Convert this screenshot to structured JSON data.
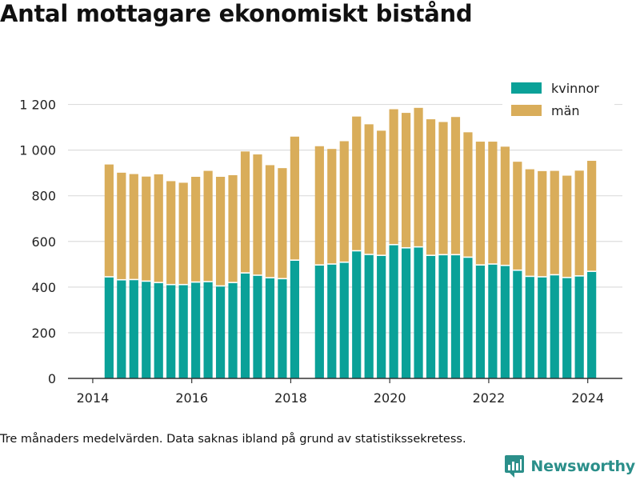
{
  "page": {
    "title": "Antal mottagare ekonomiskt bistånd",
    "note": "Tre månaders medelvärden. Data saknas ibland på grund av statistikssekretess.",
    "brand": "Newsworthy"
  },
  "colors": {
    "kvinnor": "#0aa198",
    "man": "#d9ad5a",
    "grid": "#dddddd",
    "axis": "#333333",
    "brand": "#2b8f8a"
  },
  "chart_data": {
    "type": "bar",
    "stacked": true,
    "title": "Antal mottagare ekonomiskt bistånd",
    "xlabel": "",
    "ylabel": "",
    "xlim": [
      2013.5,
      2024.7
    ],
    "ylim": [
      0,
      1300
    ],
    "y_ticks": [
      0,
      200,
      400,
      600,
      800,
      1000,
      1200
    ],
    "y_tick_labels": [
      "0",
      "200",
      "400",
      "600",
      "800",
      "1 000",
      "1 200"
    ],
    "x_ticks": [
      2014,
      2016,
      2018,
      2020,
      2022,
      2024
    ],
    "x_tick_labels": [
      "2014",
      "2016",
      "2018",
      "2020",
      "2022",
      "2024"
    ],
    "grid": true,
    "legend_position": "top-right",
    "x": [
      2014.33,
      2014.58,
      2014.83,
      2015.08,
      2015.33,
      2015.58,
      2015.83,
      2016.08,
      2016.33,
      2016.58,
      2016.83,
      2017.08,
      2017.33,
      2017.58,
      2017.83,
      2018.08,
      2018.58,
      2018.83,
      2019.08,
      2019.33,
      2019.58,
      2019.83,
      2020.08,
      2020.33,
      2020.58,
      2020.83,
      2021.08,
      2021.33,
      2021.58,
      2021.83,
      2022.08,
      2022.33,
      2022.58,
      2022.83,
      2023.08,
      2023.33,
      2023.58,
      2023.83,
      2024.08
    ],
    "series": [
      {
        "name": "kvinnor",
        "values": [
          445,
          432,
          433,
          426,
          420,
          411,
          411,
          422,
          424,
          405,
          420,
          462,
          452,
          441,
          437,
          518,
          497,
          501,
          509,
          559,
          543,
          539,
          586,
          572,
          576,
          539,
          542,
          542,
          531,
          497,
          501,
          495,
          474,
          447,
          445,
          454,
          442,
          449,
          469
        ]
      },
      {
        "name": "män",
        "values": [
          492,
          469,
          462,
          458,
          474,
          453,
          446,
          461,
          485,
          478,
          470,
          532,
          529,
          493,
          484,
          541,
          520,
          504,
          530,
          588,
          570,
          546,
          593,
          591,
          609,
          596,
          581,
          603,
          547,
          540,
          536,
          520,
          475,
          469,
          463,
          455,
          446,
          461,
          484
        ]
      }
    ]
  }
}
